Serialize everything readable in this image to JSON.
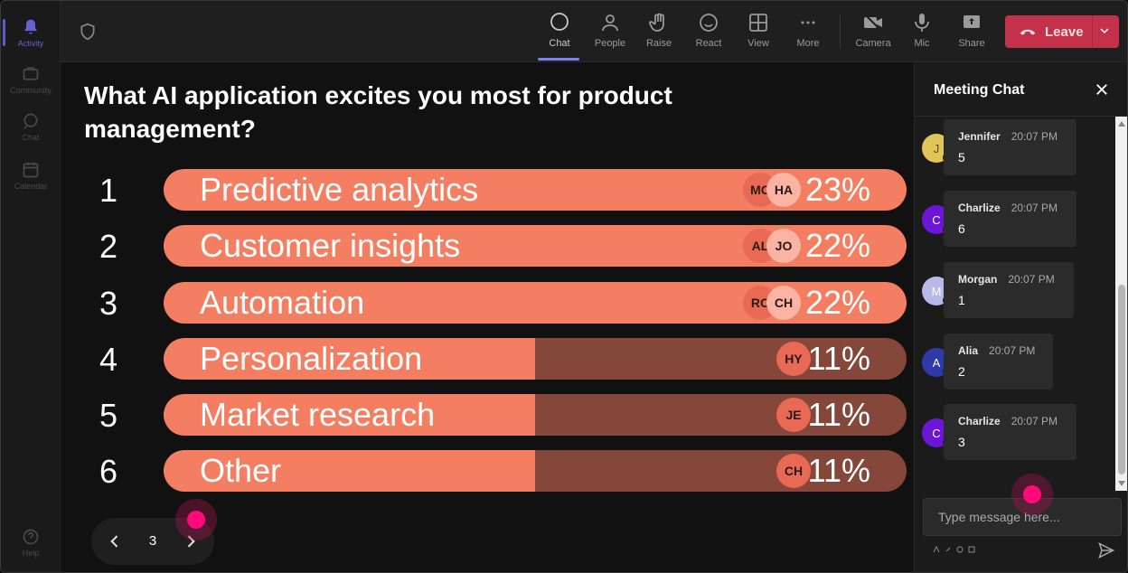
{
  "rail": {
    "items": [
      {
        "label": "Activity"
      },
      {
        "label": "Community"
      },
      {
        "label": "Chat"
      },
      {
        "label": "Calendar"
      },
      {
        "label": "Help"
      }
    ]
  },
  "toolbar": {
    "chat": "Chat",
    "people": "People",
    "raise": "Raise",
    "react": "React",
    "view": "View",
    "more": "More",
    "camera": "Camera",
    "mic": "Mic",
    "share": "Share",
    "leave": "Leave"
  },
  "poll": {
    "question": "What AI application excites you most for product management?",
    "options": [
      {
        "rank": "1",
        "label": "Predictive analytics",
        "percent": "23%",
        "fill": 1.0,
        "avatars": [
          "MC",
          "HA"
        ]
      },
      {
        "rank": "2",
        "label": "Customer insights",
        "percent": "22%",
        "fill": 1.0,
        "avatars": [
          "AL",
          "JO"
        ]
      },
      {
        "rank": "3",
        "label": "Automation",
        "percent": "22%",
        "fill": 1.0,
        "avatars": [
          "RC",
          "CH"
        ]
      },
      {
        "rank": "4",
        "label": "Personalization",
        "percent": "11%",
        "fill": 0.5,
        "avatars": [
          "HY"
        ]
      },
      {
        "rank": "5",
        "label": "Market research",
        "percent": "11%",
        "fill": 0.5,
        "avatars": [
          "JE"
        ]
      },
      {
        "rank": "6",
        "label": "Other",
        "percent": "11%",
        "fill": 0.5,
        "avatars": [
          "CH"
        ]
      }
    ],
    "page": "3"
  },
  "chat": {
    "title": "Meeting Chat",
    "messages": [
      {
        "initial": "J",
        "name": "Jennifer",
        "time": "20:07 PM",
        "text": "5",
        "color": "#e2c55a",
        "initial_color": "#5a4a10"
      },
      {
        "initial": "C",
        "name": "Charlize",
        "time": "20:07 PM",
        "text": "6",
        "color": "#6b16d6",
        "initial_color": "#ffffff"
      },
      {
        "initial": "M",
        "name": "Morgan",
        "time": "20:07 PM",
        "text": "1",
        "color": "#b7b9e8",
        "initial_color": "#ffffff"
      },
      {
        "initial": "A",
        "name": "Alia",
        "time": "20:07 PM",
        "text": "2",
        "color": "#2f3aa8",
        "initial_color": "#ffffff"
      },
      {
        "initial": "C",
        "name": "Charlize",
        "time": "20:07 PM",
        "text": "3",
        "color": "#6b16d6",
        "initial_color": "#ffffff"
      }
    ],
    "input_placeholder": "Type message here..."
  }
}
